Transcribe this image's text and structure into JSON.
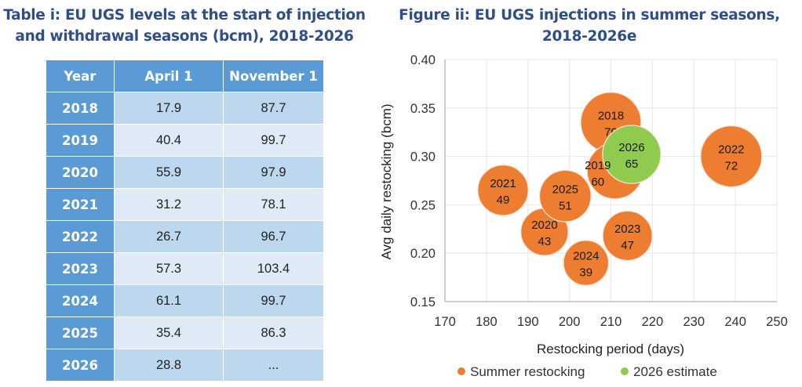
{
  "table": {
    "title": "Table i: EU UGS levels at the start of injection and withdrawal seasons (bcm), 2018-2026",
    "headers": [
      "Year",
      "April 1",
      "November 1"
    ],
    "rows": [
      {
        "year": "2018",
        "april": "17.9",
        "november": "87.7"
      },
      {
        "year": "2019",
        "april": "40.4",
        "november": "99.7"
      },
      {
        "year": "2020",
        "april": "55.9",
        "november": "97.9"
      },
      {
        "year": "2021",
        "april": "31.2",
        "november": "78.1"
      },
      {
        "year": "2022",
        "april": "26.7",
        "november": "96.7"
      },
      {
        "year": "2023",
        "april": "57.3",
        "november": "103.4"
      },
      {
        "year": "2024",
        "april": "61.1",
        "november": "99.7"
      },
      {
        "year": "2025",
        "april": "35.4",
        "november": "86.3"
      },
      {
        "year": "2026",
        "april": "28.8",
        "november": "..."
      }
    ],
    "colors": {
      "header": "#5b9bd5",
      "row_odd": "#bdd7ee",
      "row_even": "#deebf7",
      "title": "#2f4d8a"
    }
  },
  "chart_data": {
    "type": "scatter",
    "subtype": "bubble",
    "title": "Figure ii: EU UGS injections in summer seasons, 2018-2026e",
    "xlabel": "Restocking period (days)",
    "ylabel": "Avg daily restocking  (bcm)",
    "xlim": [
      170,
      250
    ],
    "ylim": [
      0.15,
      0.4
    ],
    "xticks": [
      "170",
      "180",
      "190",
      "200",
      "210",
      "220",
      "230",
      "240",
      "250"
    ],
    "yticks": [
      "0.15",
      "0.20",
      "0.25",
      "0.30",
      "0.35",
      "0.40"
    ],
    "grid": true,
    "legend_position": "bottom",
    "series": [
      {
        "name": "Summer restocking",
        "color": "#ed7d31",
        "points": [
          {
            "label": "2018",
            "x": 210,
            "y": 0.335,
            "size": 70
          },
          {
            "label": "2019",
            "x": 211,
            "y": 0.285,
            "size": 60
          },
          {
            "label": "2020",
            "x": 194,
            "y": 0.222,
            "size": 43
          },
          {
            "label": "2021",
            "x": 184,
            "y": 0.265,
            "size": 49
          },
          {
            "label": "2022",
            "x": 239,
            "y": 0.3,
            "size": 72
          },
          {
            "label": "2023",
            "x": 214,
            "y": 0.218,
            "size": 47
          },
          {
            "label": "2024",
            "x": 204,
            "y": 0.19,
            "size": 39
          },
          {
            "label": "2025",
            "x": 199,
            "y": 0.259,
            "size": 51
          }
        ]
      },
      {
        "name": "2026 estimate",
        "color": "#8fcb4f",
        "points": [
          {
            "label": "2026",
            "x": 215,
            "y": 0.302,
            "size": 65
          }
        ]
      }
    ]
  }
}
